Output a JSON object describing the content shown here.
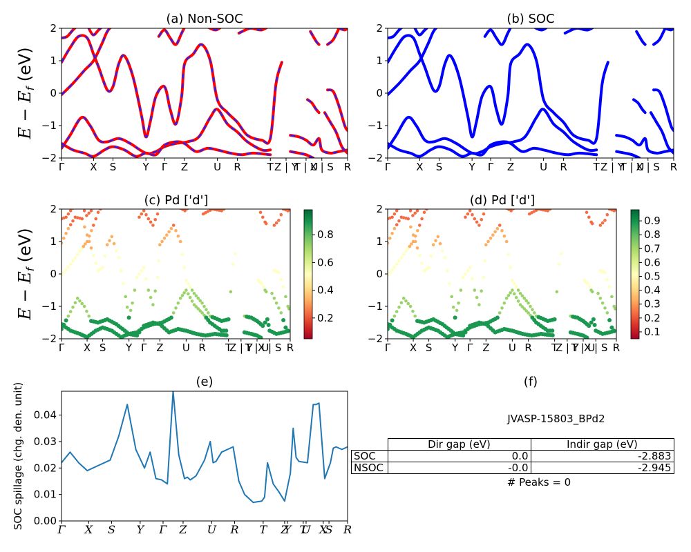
{
  "panels": {
    "a": {
      "title": "(a) Non-SOC"
    },
    "b": {
      "title": "(b) SOC"
    },
    "c": {
      "title": "(c)  Pd ['d']"
    },
    "d": {
      "title": "(d) Pd ['d']"
    },
    "e": {
      "title": "(e)"
    },
    "f": {
      "title": "(f)"
    }
  },
  "band_axes": {
    "ylabel": "E − E_f (eV)",
    "ylim": [
      -2,
      2
    ],
    "yticks": [
      "2",
      "1",
      "0",
      "−1",
      "−2"
    ],
    "kpoint_labels_top": [
      "Γ",
      "X",
      "S",
      "Y",
      "Γ",
      "Z",
      "U",
      "R",
      "T",
      "Z | Y",
      "T | U",
      "X | S",
      "R"
    ],
    "kpoint_labels_mid": [
      "Γ",
      "X",
      "S",
      "Y",
      "Γ",
      "Z",
      "U",
      "R",
      "T",
      "Z | Y",
      "T | U",
      "X | S",
      "R"
    ]
  },
  "colorbar_c": {
    "ticks": [
      "0.8",
      "0.6",
      "0.4",
      "0.2"
    ],
    "colormap": "RdYlGn"
  },
  "colorbar_d": {
    "ticks": [
      "0.9",
      "0.8",
      "0.7",
      "0.6",
      "0.5",
      "0.4",
      "0.3",
      "0.2",
      "0.1"
    ],
    "colormap": "RdYlGn"
  },
  "colors": {
    "nonsoc_red": "#ff0000",
    "nonsoc_blue_dash": "#2222ff",
    "soc_blue": "#0000ff",
    "spillage_line": "#1f77b4"
  },
  "spillage": {
    "ylabel": "SOC spillage (chg. den. unit)",
    "yticks": [
      "0.04",
      "0.03",
      "0.02",
      "0.01",
      "0.00"
    ],
    "xticks": [
      "Γ",
      "X",
      "S",
      "Y",
      "Γ",
      "Z",
      "U",
      "R",
      "T",
      "Z",
      "Y",
      "T",
      "U",
      "X",
      "S",
      "R"
    ]
  },
  "info": {
    "jid": "JVASP-15803_BPd2",
    "table": {
      "headers": [
        "Dir gap (eV)",
        "Indir gap (eV)"
      ],
      "rows": [
        {
          "label": "SOC",
          "dir": "0.0",
          "indir": "-2.883"
        },
        {
          "label": "NSOC",
          "dir": "-0.0",
          "indir": "-2.945"
        }
      ]
    },
    "peaks": "# Peaks = 0"
  },
  "chart_data": [
    {
      "type": "line",
      "title": "(e)",
      "ylabel": "SOC spillage (chg. den. unit)",
      "ylim": [
        0,
        0.049
      ],
      "xticklabels": [
        "Γ",
        "X",
        "S",
        "Y",
        "Γ",
        "Z",
        "U",
        "R",
        "T",
        "Z",
        "Y",
        "T",
        "U",
        "X",
        "S",
        "R"
      ],
      "series": [
        {
          "x": [
            0,
            0.03,
            0.06,
            0.09,
            0.13,
            0.17,
            0.2,
            0.23,
            0.26,
            0.29,
            0.31,
            0.33,
            0.35,
            0.37,
            0.39,
            0.41,
            0.43,
            0.44,
            0.45,
            0.47,
            0.5,
            0.52,
            0.53,
            0.54,
            0.56,
            0.6,
            0.62,
            0.64,
            0.67,
            0.7,
            0.71,
            0.72,
            0.74,
            0.76,
            0.78,
            0.8,
            0.81,
            0.82,
            0.83,
            0.86,
            0.88,
            0.89,
            0.9,
            0.92,
            0.94,
            0.95,
            0.96,
            0.98,
            1.0
          ],
          "y": [
            0.022,
            0.026,
            0.022,
            0.019,
            0.021,
            0.023,
            0.032,
            0.044,
            0.027,
            0.02,
            0.026,
            0.016,
            0.0155,
            0.014,
            0.049,
            0.025,
            0.016,
            0.0165,
            0.0155,
            0.017,
            0.023,
            0.03,
            0.022,
            0.0225,
            0.026,
            0.028,
            0.015,
            0.01,
            0.007,
            0.0075,
            0.009,
            0.022,
            0.014,
            0.011,
            0.0075,
            0.018,
            0.035,
            0.024,
            0.0225,
            0.022,
            0.044,
            0.044,
            0.0445,
            0.016,
            0.022,
            0.0275,
            0.028,
            0.027,
            0.028
          ]
        }
      ]
    }
  ]
}
